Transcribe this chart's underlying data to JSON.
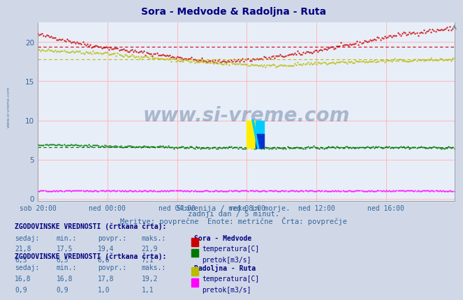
{
  "title": "Sora - Medvode & Radoljna - Ruta",
  "background_color": "#d0d8e8",
  "plot_bg_color": "#e8eef8",
  "grid_color_v": "#ffb0b0",
  "grid_color_h": "#ffb0b0",
  "subtitle_lines": [
    "Slovenija / reke in morje.",
    "zadnji dan / 5 minut.",
    "Meritve: povprečne  Enote: metrične  Črta: povprečje"
  ],
  "x_tick_labels": [
    "sob 20:00",
    "ned 00:00",
    "ned 04:00",
    "ned 08:00",
    "ned 12:00",
    "ned 16:00"
  ],
  "x_tick_positions": [
    0,
    48,
    96,
    144,
    192,
    240
  ],
  "y_ticks": [
    0,
    5,
    10,
    15,
    20
  ],
  "ylim_min": -0.3,
  "ylim_max": 22.5,
  "n_points": 288,
  "watermark": "www.si-vreme.com",
  "watermark_color": "#1a3a6a",
  "watermark_alpha": 0.3,
  "series": {
    "sora_temp": {
      "color": "#cc0000",
      "avg": 19.4,
      "min": 17.5,
      "max": 21.9,
      "current": 21.8
    },
    "sora_pretok": {
      "color": "#007700",
      "avg": 6.6,
      "min": 6.5,
      "max": 7.1,
      "current": 6.5
    },
    "radoljna_temp": {
      "color": "#bbbb00",
      "avg": 17.8,
      "min": 16.8,
      "max": 19.2,
      "current": 16.8
    },
    "radoljna_pretok": {
      "color": "#ff00ff",
      "avg": 1.0,
      "min": 0.9,
      "max": 1.1,
      "current": 0.9
    }
  },
  "sec1_header": "ZGODOVINSKE VREDNOSTI (črtkana črta):",
  "sec1_title": "Sora - Medvode",
  "sec1_cols": [
    "sedaj:",
    "min.:",
    "povpr.:",
    "maks.:"
  ],
  "sec1_rows": [
    [
      "21,8",
      "17,5",
      "19,4",
      "21,9"
    ],
    [
      "6,5",
      "6,5",
      "6,6",
      "7,1"
    ]
  ],
  "sec1_labels": [
    "temperatura[C]",
    "pretok[m3/s]"
  ],
  "sec1_colors": [
    "#cc0000",
    "#007700"
  ],
  "sec2_header": "ZGODOVINSKE VREDNOSTI (črtkana črta):",
  "sec2_title": "Radoljna - Ruta",
  "sec2_cols": [
    "sedaj:",
    "min.:",
    "povpr.:",
    "maks.:"
  ],
  "sec2_rows": [
    [
      "16,8",
      "16,8",
      "17,8",
      "19,2"
    ],
    [
      "0,9",
      "0,9",
      "1,0",
      "1,1"
    ]
  ],
  "sec2_labels": [
    "temperatura[C]",
    "pretok[m3/s]"
  ],
  "sec2_colors": [
    "#bbbb00",
    "#ff00ff"
  ],
  "label_color": "#336699",
  "title_color": "#000080",
  "bold_color": "#000080",
  "side_label": "www.si-vreme.com"
}
